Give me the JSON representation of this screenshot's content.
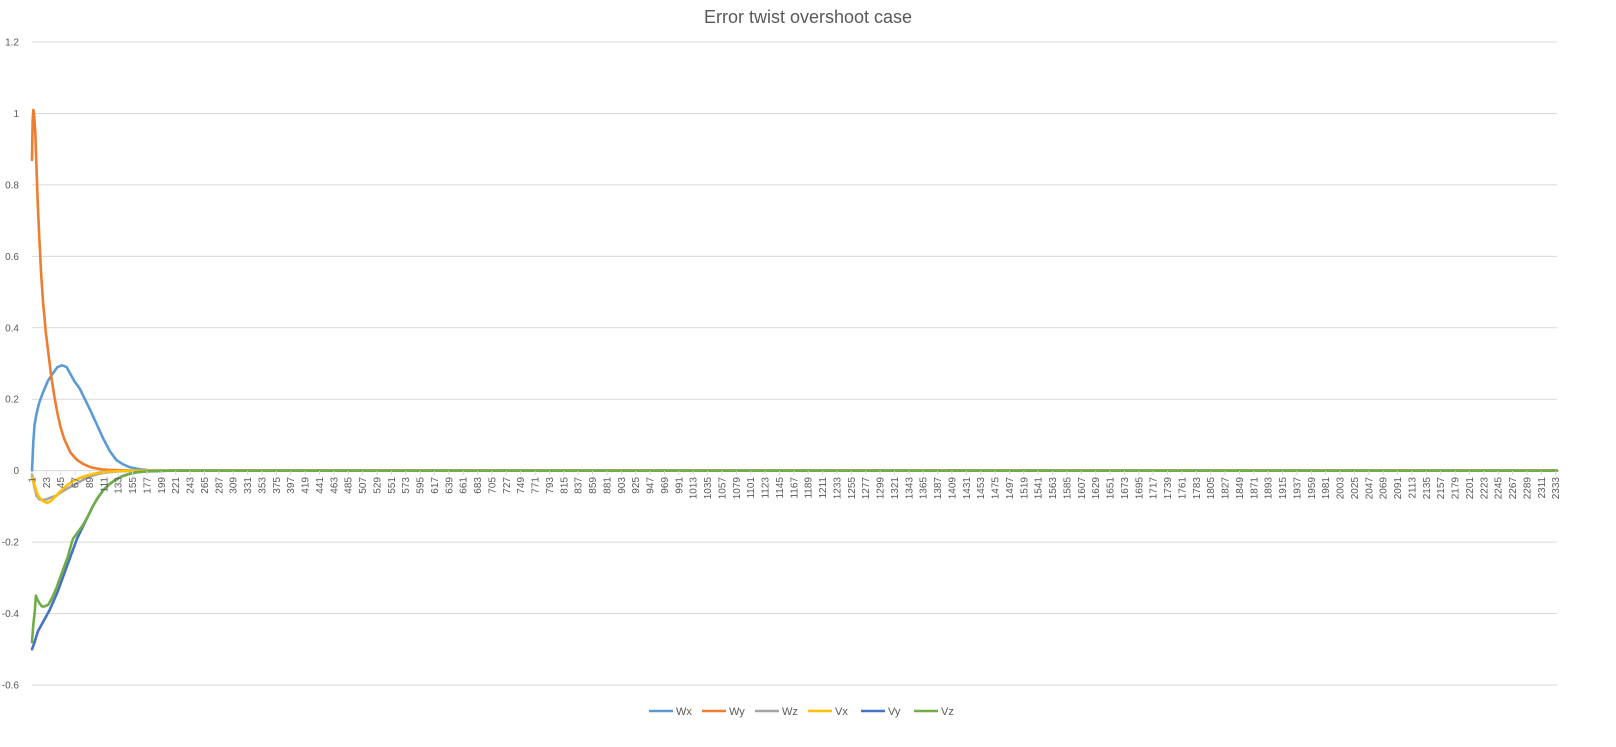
{
  "chart_data": {
    "type": "line",
    "title": "Error twist overshoot case",
    "xlabel": "",
    "ylabel": "",
    "ylim": [
      -0.6,
      1.2
    ],
    "y_ticks": [
      "1.2",
      "1",
      "0.8",
      "0.6",
      "0.4",
      "0.2",
      "0",
      "-0.2",
      "-0.4",
      "-0.6"
    ],
    "x_range": [
      1,
      2335
    ],
    "x_tick_start": 1,
    "x_tick_step": 22,
    "grid": true,
    "legend_position": "bottom",
    "series": [
      {
        "name": "Wx",
        "color": "#5B9BD5",
        "x": [
          1,
          3,
          5,
          8,
          12,
          18,
          25,
          32,
          40,
          47,
          54,
          60,
          66,
          74,
          82,
          90,
          100,
          110,
          120,
          130,
          140,
          150,
          160,
          170,
          180,
          200,
          230,
          2335
        ],
        "y": [
          0,
          0.08,
          0.13,
          0.16,
          0.19,
          0.22,
          0.25,
          0.27,
          0.29,
          0.295,
          0.29,
          0.27,
          0.25,
          0.23,
          0.2,
          0.17,
          0.13,
          0.09,
          0.055,
          0.03,
          0.018,
          0.01,
          0.006,
          0.003,
          0.001,
          0,
          0,
          0
        ]
      },
      {
        "name": "Wy",
        "color": "#ED7D31",
        "x": [
          1,
          2,
          3,
          4,
          6,
          8,
          10,
          12,
          15,
          18,
          22,
          26,
          30,
          35,
          40,
          45,
          50,
          55,
          60,
          70,
          80,
          90,
          100,
          110,
          120,
          140,
          160,
          180,
          200,
          2335
        ],
        "y": [
          0.87,
          0.98,
          1.01,
          1.0,
          0.95,
          0.84,
          0.74,
          0.66,
          0.55,
          0.47,
          0.39,
          0.33,
          0.27,
          0.21,
          0.16,
          0.12,
          0.09,
          0.07,
          0.05,
          0.03,
          0.018,
          0.01,
          0.006,
          0.003,
          0.002,
          0.001,
          0,
          0,
          0,
          0
        ]
      },
      {
        "name": "Wz",
        "color": "#A5A5A5",
        "x": [
          1,
          4,
          8,
          12,
          18,
          24,
          30,
          38,
          46,
          55,
          65,
          75,
          85,
          95,
          105,
          115,
          125,
          135,
          145,
          160,
          175,
          190,
          210,
          2335
        ],
        "y": [
          -0.01,
          -0.04,
          -0.07,
          -0.08,
          -0.082,
          -0.08,
          -0.075,
          -0.07,
          -0.06,
          -0.05,
          -0.04,
          -0.03,
          -0.02,
          -0.013,
          -0.008,
          -0.005,
          -0.003,
          -0.002,
          -0.001,
          0,
          0,
          0,
          0,
          0
        ]
      },
      {
        "name": "Vx",
        "color": "#FFC000",
        "x": [
          1,
          4,
          8,
          12,
          18,
          24,
          30,
          38,
          46,
          55,
          65,
          75,
          85,
          95,
          105,
          115,
          125,
          135,
          145,
          160,
          175,
          190,
          210,
          2335
        ],
        "y": [
          -0.02,
          -0.035,
          -0.06,
          -0.075,
          -0.085,
          -0.09,
          -0.085,
          -0.07,
          -0.055,
          -0.04,
          -0.028,
          -0.02,
          -0.014,
          -0.009,
          -0.005,
          -0.003,
          -0.002,
          -0.001,
          0,
          0,
          0,
          0,
          0,
          0
        ]
      },
      {
        "name": "Vy",
        "color": "#4472C4",
        "x": [
          1,
          5,
          10,
          16,
          22,
          28,
          34,
          40,
          46,
          52,
          58,
          64,
          70,
          78,
          86,
          94,
          102,
          110,
          120,
          130,
          140,
          150,
          160,
          170,
          180,
          195,
          210,
          2335
        ],
        "y": [
          -0.5,
          -0.48,
          -0.45,
          -0.43,
          -0.41,
          -0.39,
          -0.365,
          -0.34,
          -0.31,
          -0.28,
          -0.25,
          -0.22,
          -0.19,
          -0.16,
          -0.13,
          -0.1,
          -0.075,
          -0.055,
          -0.037,
          -0.024,
          -0.015,
          -0.009,
          -0.005,
          -0.003,
          -0.002,
          -0.001,
          0,
          0
        ]
      },
      {
        "name": "Vz",
        "color": "#70AD47",
        "x": [
          1,
          3,
          5,
          7,
          9,
          12,
          16,
          20,
          26,
          32,
          38,
          44,
          50,
          56,
          62,
          64,
          70,
          78,
          86,
          94,
          102,
          110,
          120,
          130,
          140,
          150,
          160,
          170,
          185,
          200,
          2335
        ],
        "y": [
          -0.48,
          -0.43,
          -0.4,
          -0.35,
          -0.36,
          -0.37,
          -0.38,
          -0.38,
          -0.375,
          -0.355,
          -0.33,
          -0.3,
          -0.27,
          -0.24,
          -0.2,
          -0.19,
          -0.175,
          -0.155,
          -0.13,
          -0.1,
          -0.075,
          -0.055,
          -0.037,
          -0.024,
          -0.015,
          -0.009,
          -0.005,
          -0.003,
          -0.001,
          0,
          0
        ]
      }
    ]
  }
}
